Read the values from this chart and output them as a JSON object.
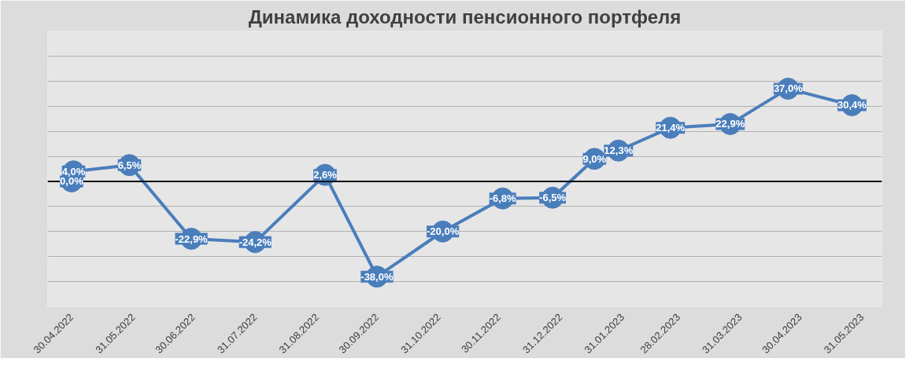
{
  "chart_data": {
    "type": "line",
    "title": "Динамика доходности пенсионного портфеля",
    "x": [
      "2022-04-30",
      "2022-05-01",
      "2022-05-29",
      "2022-06-29",
      "2022-07-31",
      "2022-09-04",
      "2022-09-30",
      "2022-11-02",
      "2022-12-02",
      "2022-12-27",
      "2023-01-17",
      "2023-01-29",
      "2023-02-24",
      "2023-03-26",
      "2023-04-24",
      "2023-05-26"
    ],
    "series": [
      {
        "color": "#4a7ebb",
        "values": [
          0.0,
          4.0,
          6.5,
          -22.9,
          -24.2,
          2.6,
          -38.0,
          -20.0,
          -6.8,
          -6.5,
          9.0,
          12.3,
          21.4,
          22.9,
          37.0,
          30.4
        ],
        "value_labels": [
          "0,0%",
          "4,0%",
          "6,5%",
          "-22,9%",
          "-24,2%",
          "2,6%",
          "-38,0%",
          "-20,0%",
          "-6,8%",
          "-6,5%",
          "9,0%",
          "12,3%",
          "21,4%",
          "22,9%",
          "37,0%",
          "30,4%"
        ]
      }
    ],
    "xlim": [
      "2022-04-18",
      "2023-06-10"
    ],
    "ref_lines": [
      {
        "axis": "y",
        "value": 0,
        "color": "#000000"
      }
    ],
    "xticks": [
      {
        "value": "2022-04-30",
        "label": "30.04.2022"
      },
      {
        "value": "2022-05-31",
        "label": "31.05.2022"
      },
      {
        "value": "2022-06-30",
        "label": "30.06.2022"
      },
      {
        "value": "2022-07-31",
        "label": "31.07.2022"
      },
      {
        "value": "2022-08-31",
        "label": "31.08.2022"
      },
      {
        "value": "2022-09-30",
        "label": "30.09.2022"
      },
      {
        "value": "2022-10-31",
        "label": "31.10.2022"
      },
      {
        "value": "2022-11-30",
        "label": "30.11.2022"
      },
      {
        "value": "2022-12-31",
        "label": "31.12.2022"
      },
      {
        "value": "2023-01-31",
        "label": "31.01.2023"
      },
      {
        "value": "2023-02-28",
        "label": "28.02.2023"
      },
      {
        "value": "2023-03-31",
        "label": "31.03.2023"
      },
      {
        "value": "2023-04-30",
        "label": "30.04.2023"
      },
      {
        "value": "2023-05-31",
        "label": "31.05.2023"
      }
    ],
    "ylim": [
      -50,
      60
    ],
    "yticks": [
      {
        "value": -50,
        "label": null
      },
      {
        "value": -40,
        "label": null
      },
      {
        "value": -30,
        "label": null
      },
      {
        "value": -20,
        "label": null
      },
      {
        "value": -10,
        "label": null
      },
      {
        "value": 0,
        "label": null
      },
      {
        "value": 10,
        "label": null
      },
      {
        "value": 20,
        "label": null
      },
      {
        "value": 30,
        "label": null
      },
      {
        "value": 40,
        "label": null
      },
      {
        "value": 50,
        "label": null
      },
      {
        "value": 60,
        "label": null
      }
    ],
    "grid": "y",
    "marker": "circle",
    "line_style": "solid"
  }
}
